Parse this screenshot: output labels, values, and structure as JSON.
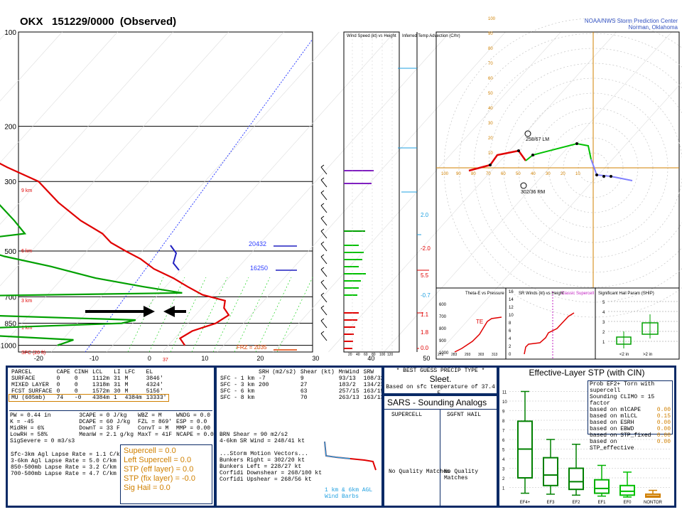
{
  "header": {
    "title": "OKX   151229/0000  (Observed)",
    "credit_line1": "NOAA/NWS Storm Prediction Center",
    "credit_line2": "Norman, Oklahoma"
  },
  "colors": {
    "temp": "#e00000",
    "dewpoint": "#00a000",
    "virtual_temp": "#2020c0",
    "hodo_low": "#e00000",
    "hodo_mid": "#00c000",
    "hodo_high": "#8080ff",
    "panel_border": "#0a2a66",
    "orange": "#d08000"
  },
  "chart_data": [
    {
      "type": "line",
      "title": "Skew-T log-P",
      "y_ticks": [
        "100",
        "200",
        "300",
        "500",
        "700",
        "850",
        "1000"
      ],
      "x_ticks": [
        "-30",
        "-20",
        "-10",
        "0",
        "10",
        "20",
        "30",
        "40",
        "50"
      ],
      "height_labels": [
        "9 km",
        "6 km",
        "3 km",
        "1 km",
        "SFC (20 ft)"
      ],
      "level_annotations": [
        {
          "label": "20432",
          "p": 470
        },
        {
          "label": "16250",
          "p": 535
        },
        {
          "label": "FRZ = 2035",
          "p": 960
        }
      ],
      "surface_temp_label": "37",
      "series": [
        {
          "name": "temperature",
          "points": [
            [
              255,
              -62
            ],
            [
              270,
              -58
            ],
            [
              300,
              -50
            ],
            [
              350,
              -43
            ],
            [
              400,
              -36
            ],
            [
              440,
              -30
            ],
            [
              470,
              -27
            ],
            [
              500,
              -23
            ],
            [
              530,
              -19
            ],
            [
              570,
              -15
            ],
            [
              610,
              -10
            ],
            [
              650,
              -6
            ],
            [
              690,
              -2
            ],
            [
              720,
              3
            ],
            [
              760,
              4
            ],
            [
              800,
              6
            ],
            [
              850,
              5
            ],
            [
              900,
              2
            ],
            [
              950,
              1
            ],
            [
              1000,
              3
            ]
          ]
        },
        {
          "name": "dewpoint",
          "points": [
            [
              255,
              -68
            ],
            [
              270,
              -66
            ],
            [
              300,
              -60
            ],
            [
              350,
              -54
            ],
            [
              400,
              -48
            ],
            [
              440,
              -44
            ],
            [
              480,
              -60
            ],
            [
              500,
              -48
            ],
            [
              520,
              -44
            ],
            [
              560,
              -34
            ],
            [
              610,
              -24
            ],
            [
              650,
              -14
            ],
            [
              680,
              -6
            ],
            [
              700,
              -55
            ],
            [
              730,
              -80
            ],
            [
              760,
              -60
            ],
            [
              800,
              -40
            ],
            [
              830,
              -10
            ],
            [
              850,
              -12
            ],
            [
              900,
              -50
            ],
            [
              960,
              -18
            ],
            [
              1000,
              -20
            ]
          ]
        }
      ]
    },
    {
      "type": "bar",
      "title": "Wind Speed (kt) vs Height",
      "x_ticks": [
        "20",
        "40",
        "60",
        "80",
        "100",
        "120"
      ]
    },
    {
      "type": "bar",
      "title": "Inferred Temp Advection (C/hr)",
      "annotations": [
        "-2.0",
        "2.0",
        "5.5",
        "-0.7",
        "1.1",
        "1.8",
        "0.0"
      ]
    },
    {
      "type": "line",
      "title": "Hodograph",
      "ring_labels": [
        "10",
        "20",
        "30",
        "40",
        "50",
        "60",
        "70",
        "80",
        "90",
        "100"
      ],
      "markers": [
        "258/67 LM",
        "302/36 RM"
      ]
    },
    {
      "type": "line",
      "title": "Theta-E vs Pressure",
      "y_ticks": [
        "600",
        "700",
        "800",
        "900",
        "1000"
      ],
      "x_ticks": [
        "273",
        "283",
        "293",
        "303",
        "313"
      ],
      "label": "TE"
    },
    {
      "type": "line",
      "title": "SR Winds (kt) vs Height",
      "subtitle": "Classic Supercell",
      "y_ticks": [
        "0",
        "2",
        "4",
        "6",
        "8",
        "10",
        "12",
        "14",
        "16"
      ]
    },
    {
      "type": "box",
      "title": "Significant Hail Param (SHIP)",
      "y_ticks": [
        "1",
        "2",
        "3",
        "4",
        "5"
      ],
      "categories": [
        "<2 in",
        ">2 in"
      ]
    },
    {
      "type": "box",
      "title": "Effective-Layer STP (with CIN)",
      "categories": [
        "EF4+",
        "EF3",
        "EF2",
        "EF1",
        "EF0",
        "NONTOR"
      ],
      "y_ticks": [
        "1",
        "2",
        "3",
        "4",
        "5",
        "6",
        "7",
        "8",
        "9",
        "10",
        "11"
      ],
      "series": [
        {
          "name": "EF4+",
          "whisker_low": 0.4,
          "q1": 2.0,
          "median": 5.0,
          "q3": 7.9,
          "whisker_high": 11.0
        },
        {
          "name": "EF3",
          "whisker_low": 0.3,
          "q1": 1.2,
          "median": 2.3,
          "q3": 4.1,
          "whisker_high": 6.0
        },
        {
          "name": "EF2",
          "whisker_low": 0.2,
          "q1": 0.8,
          "median": 1.6,
          "q3": 3.0,
          "whisker_high": 5.5
        },
        {
          "name": "EF1",
          "whisker_low": 0.1,
          "q1": 0.4,
          "median": 0.9,
          "q3": 1.8,
          "whisker_high": 3.3
        },
        {
          "name": "EF0",
          "whisker_low": 0.0,
          "q1": 0.2,
          "median": 0.6,
          "q3": 1.2,
          "whisker_high": 2.6
        },
        {
          "name": "NONTOR",
          "whisker_low": 0.0,
          "q1": 0.0,
          "median": 0.1,
          "q3": 0.3,
          "whisker_high": 0.7
        }
      ]
    }
  ],
  "parcel": {
    "headers": [
      "PARCEL",
      "CAPE",
      "CINH",
      "LCL",
      "LI",
      "LFC",
      "EL"
    ],
    "rows": [
      [
        "SURFACE",
        "0",
        "0",
        "1112m",
        "31",
        "M",
        "3846'"
      ],
      [
        "MIXED LAYER",
        "0",
        "0",
        "1318m",
        "31",
        "M",
        "4324'"
      ],
      [
        "FCST SURFACE",
        "0",
        "0",
        "1572m",
        "30",
        "M",
        "5156'"
      ],
      [
        "MU  (605mb)",
        "74",
        "-0",
        "4384m",
        "1",
        "4384m",
        "13333'"
      ]
    ]
  },
  "indices": {
    "rows": [
      [
        "PW = 0.44 in",
        "3CAPE = 0 J/kg",
        "WBZ = M",
        "WNDG = 0.0"
      ],
      [
        "K = -45",
        "DCAPE = 60 J/kg",
        "FZL = 869'",
        "ESP = 0.0"
      ],
      [
        "MidRH = 6%",
        "DownT = 33 F",
        "ConvT = M",
        "MMP = 0.00"
      ],
      [
        "LowRH = 58%",
        "MeanW = 2.1 g/kg",
        "MaxT = 41F",
        "NCAPE = 0.06"
      ],
      [
        "SigSevere = 0 m3/s3",
        "",
        "",
        ""
      ]
    ],
    "lapse": [
      "Sfc-3km Agl Lapse Rate = 1.1 C/km",
      "3-6km Agl Lapse Rate = 5.0 C/km",
      "850-500mb Lapse Rate = 3.2 C/km",
      "700-500mb Lapse Rate = 4.7 C/km"
    ],
    "composite": [
      "Supercell = 0.0",
      "Left Supercell = 0.0",
      "STP (eff layer) = 0.0",
      "STP (fix layer) = -0.0",
      "Sig Hail = 0.0"
    ]
  },
  "kinematics": {
    "headers": [
      "SRH (m2/s2)",
      "Shear (kt)",
      "MnWind",
      "SRW"
    ],
    "rows": [
      [
        "SFC - 1 km",
        "-7",
        "9",
        "93/13",
        "108/32"
      ],
      [
        "SFC - 3 km",
        "200",
        "27",
        "183/2",
        "134/23"
      ],
      [
        "",
        "",
        "",
        "",
        ""
      ],
      [
        "SFC - 6 km",
        "",
        "63",
        "257/15",
        "163/15"
      ],
      [
        "SFC - 8 km",
        "",
        "70",
        "263/13",
        "163/13"
      ]
    ],
    "extra": [
      "BRN Shear = 90 m2/s2",
      "4-6km SR Wind = 248/41 kt",
      "",
      "...Storm Motion Vectors...",
      "Bunkers Right = 302/20 kt",
      "Bunkers Left = 228/27 kt",
      "Corfidi Downshear = 268/100 kt",
      "Corfidi Upshear = 268/56 kt"
    ],
    "mini_label": "1 km & 6km AGL Wind Barbs"
  },
  "precip": {
    "header": "* BEST GUESS PRECIP TYPE *",
    "type": "Sleet.",
    "note": "Based on sfc temperature of 37.4 F."
  },
  "sars": {
    "title": "SARS - Sounding Analogs",
    "col1": "SUPERCELL",
    "col2": "SGFNT HAIL",
    "msg1": "No Quality Matches",
    "msg2": "No Quality Matches"
  },
  "stp": {
    "title": "Effective-Layer STP (with CIN)",
    "legend_head1": "Prob EF2+ Torn with supercell",
    "legend_head2": "Sounding CLIMO = 15 factor",
    "legend_rows": [
      [
        "based on mlCAPE",
        "0.00"
      ],
      [
        "based on mlLCL",
        "0.15"
      ],
      [
        "based on ESRH",
        "0.00"
      ],
      [
        "based on EBWD",
        "0.00"
      ],
      [
        "based on STP_fixed",
        "0.00"
      ],
      [
        "based on STP_effective",
        "0.00"
      ]
    ]
  }
}
